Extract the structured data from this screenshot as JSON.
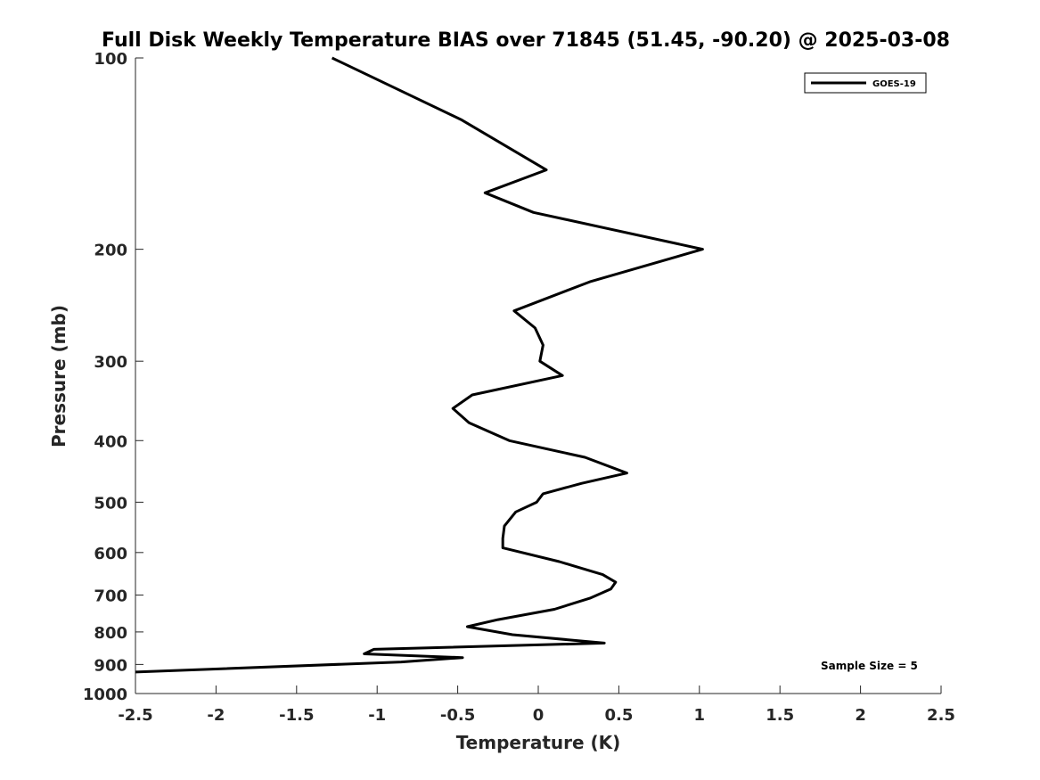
{
  "chart_data": {
    "type": "line",
    "title": "Full Disk Weekly Temperature BIAS over 71845 (51.45, -90.20) @ 2025-03-08",
    "xlabel": "Temperature (K)",
    "ylabel": "Pressure (mb)",
    "xlim": [
      -2.5,
      2.5
    ],
    "ylim": [
      1000,
      100
    ],
    "yscale": "log",
    "xticks": [
      "-2.5",
      "-2",
      "-1.5",
      "-1",
      "-0.5",
      "0",
      "0.5",
      "1",
      "1.5",
      "2",
      "2.5"
    ],
    "xtick_values": [
      -2.5,
      -2,
      -1.5,
      -1,
      -0.5,
      0,
      0.5,
      1,
      1.5,
      2,
      2.5
    ],
    "yticks": [
      "100",
      "200",
      "300",
      "400",
      "500",
      "600",
      "700",
      "800",
      "900",
      "1000"
    ],
    "ytick_values": [
      100,
      200,
      300,
      400,
      500,
      600,
      700,
      800,
      900,
      1000
    ],
    "grid": false,
    "legend_position": "top-right",
    "series": [
      {
        "name": "GOES-19",
        "color": "#000000",
        "points": [
          [
            -1.28,
            100
          ],
          [
            -0.48,
            125
          ],
          [
            0.05,
            150
          ],
          [
            -0.33,
            163
          ],
          [
            -0.03,
            175
          ],
          [
            1.02,
            200
          ],
          [
            0.32,
            225
          ],
          [
            -0.15,
            250
          ],
          [
            -0.02,
            266
          ],
          [
            0.03,
            283
          ],
          [
            0.01,
            300
          ],
          [
            0.15,
            316
          ],
          [
            -0.41,
            339
          ],
          [
            -0.53,
            356
          ],
          [
            -0.43,
            375
          ],
          [
            -0.18,
            400
          ],
          [
            0.29,
            425
          ],
          [
            0.55,
            450
          ],
          [
            0.27,
            467
          ],
          [
            0.03,
            485
          ],
          [
            -0.01,
            500
          ],
          [
            -0.14,
            518
          ],
          [
            -0.21,
            545
          ],
          [
            -0.22,
            570
          ],
          [
            -0.22,
            590
          ],
          [
            0.13,
            620
          ],
          [
            0.4,
            650
          ],
          [
            0.48,
            668
          ],
          [
            0.45,
            685
          ],
          [
            0.32,
            708
          ],
          [
            0.1,
            737
          ],
          [
            -0.25,
            765
          ],
          [
            -0.44,
            785
          ],
          [
            -0.16,
            808
          ],
          [
            0.41,
            833
          ],
          [
            -1.02,
            852
          ],
          [
            -1.08,
            866
          ],
          [
            -0.47,
            878
          ],
          [
            -0.85,
            892
          ],
          [
            -2.5,
            925
          ]
        ]
      }
    ],
    "annotations": [
      "Sample Size = 5"
    ]
  }
}
